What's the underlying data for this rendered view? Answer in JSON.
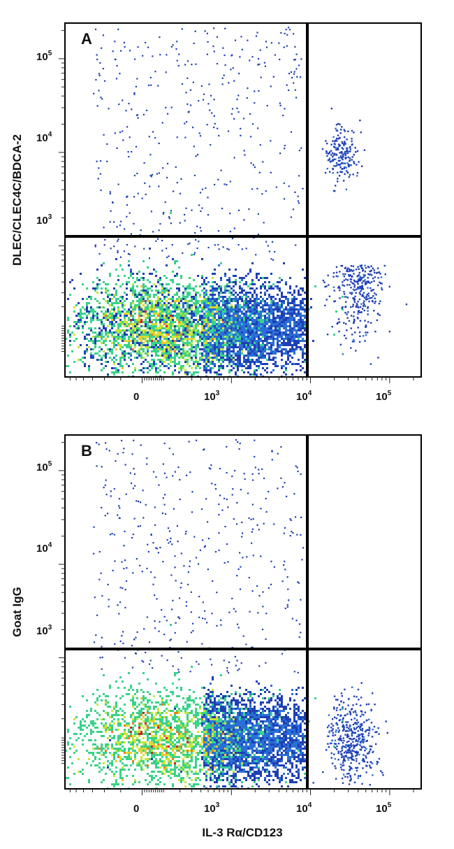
{
  "chart_data": [
    {
      "type": "scatter",
      "subtype": "flow-cytometry-density",
      "panel_label": "A",
      "xlabel": "",
      "ylabel": "DLEC/CLEC4C/BDCA-2",
      "x_scale": "biexponential",
      "y_scale": "biexponential",
      "x_ticks": [
        {
          "value": 0,
          "label": "0"
        },
        {
          "value": 1000,
          "label": "10",
          "exp": "3"
        },
        {
          "value": 10000,
          "label": "10",
          "exp": "4"
        },
        {
          "value": 100000,
          "label": "10",
          "exp": "5"
        }
      ],
      "y_ticks": [
        {
          "value": 1000,
          "label": "10",
          "exp": "3"
        },
        {
          "value": 10000,
          "label": "10",
          "exp": "4"
        },
        {
          "value": 100000,
          "label": "10",
          "exp": "5"
        }
      ],
      "quadrant_gate": {
        "x": 11000,
        "y": 650
      },
      "populations": [
        {
          "name": "main",
          "center": [
            250,
            30
          ],
          "density": "high"
        },
        {
          "name": "CD123+ BDCA-2-",
          "center": [
            45000,
            200
          ],
          "density": "low"
        },
        {
          "name": "CD123+ BDCA-2+",
          "center": [
            30000,
            6000
          ],
          "density": "low"
        }
      ]
    },
    {
      "type": "scatter",
      "subtype": "flow-cytometry-density",
      "panel_label": "B",
      "xlabel": "IL-3 Rα/CD123",
      "ylabel": "Goat IgG",
      "x_scale": "biexponential",
      "y_scale": "biexponential",
      "x_ticks": [
        {
          "value": 0,
          "label": "0"
        },
        {
          "value": 1000,
          "label": "10",
          "exp": "3"
        },
        {
          "value": 10000,
          "label": "10",
          "exp": "4"
        },
        {
          "value": 100000,
          "label": "10",
          "exp": "5"
        }
      ],
      "y_ticks": [
        {
          "value": 1000,
          "label": "10",
          "exp": "3"
        },
        {
          "value": 10000,
          "label": "10",
          "exp": "4"
        },
        {
          "value": 100000,
          "label": "10",
          "exp": "5"
        }
      ],
      "quadrant_gate": {
        "x": 11000,
        "y": 650
      },
      "populations": [
        {
          "name": "main",
          "center": [
            250,
            30
          ],
          "density": "high"
        },
        {
          "name": "CD123+",
          "center": [
            45000,
            60
          ],
          "density": "low"
        }
      ]
    }
  ],
  "colormap": [
    "#1f3fb4",
    "#2a6fd6",
    "#2fb7e0",
    "#39d28a",
    "#c8e633",
    "#f6c42a",
    "#f07a1c",
    "#d81f1f"
  ]
}
